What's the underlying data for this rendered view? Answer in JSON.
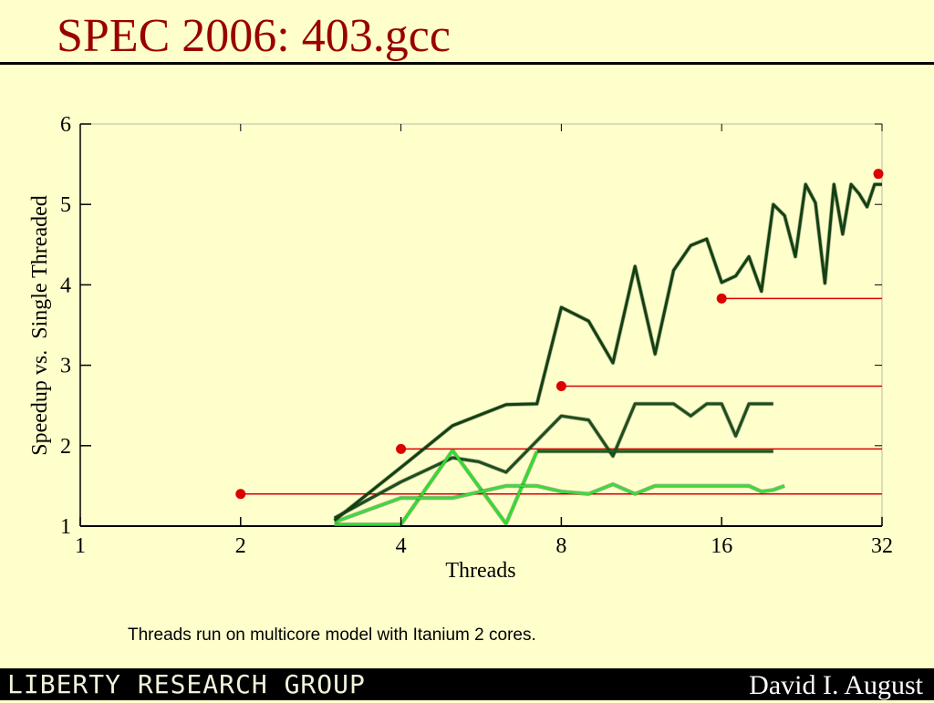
{
  "slide": {
    "title": "SPEC 2006: 403.gcc",
    "caption": "Threads run on multicore model with Itanium 2 cores.",
    "footer_logo": "LIBERTY RESEARCH GROUP",
    "footer_author": "David I. August"
  },
  "chart_data": {
    "type": "line",
    "title": "",
    "xlabel": "Threads",
    "ylabel": "Speedup vs.  Single Threaded",
    "x_scale": "log2",
    "xlim": [
      1,
      32
    ],
    "ylim": [
      1,
      6
    ],
    "x_ticks": [
      1,
      2,
      4,
      8,
      16,
      32
    ],
    "y_ticks": [
      1,
      2,
      3,
      4,
      5,
      6
    ],
    "grid": false,
    "series": [
      {
        "color": "#1e4d1e",
        "points": [
          [
            3,
            1.1
          ],
          [
            4,
            1.55
          ],
          [
            5,
            1.85
          ],
          [
            5.6,
            1.8
          ],
          [
            6.3,
            1.67
          ],
          [
            8,
            2.37
          ],
          [
            9,
            2.32
          ],
          [
            10,
            1.87
          ],
          [
            11,
            2.52
          ],
          [
            12,
            2.52
          ],
          [
            13,
            2.52
          ],
          [
            14,
            2.37
          ],
          [
            15,
            2.52
          ],
          [
            16,
            2.52
          ],
          [
            17,
            2.12
          ],
          [
            18,
            2.52
          ],
          [
            20,
            2.52
          ]
        ]
      },
      {
        "color": "#1c5c1c",
        "points": [
          [
            7.2,
            1.93
          ],
          [
            8,
            1.93
          ],
          [
            10,
            1.93
          ],
          [
            12,
            1.93
          ],
          [
            15,
            1.93
          ],
          [
            18,
            1.93
          ],
          [
            20,
            1.93
          ]
        ]
      },
      {
        "color": "#30dd30",
        "points": [
          [
            3,
            1.02
          ],
          [
            4,
            1.02
          ],
          [
            5,
            1.94
          ],
          [
            6.3,
            1.03
          ],
          [
            7.2,
            1.93
          ]
        ]
      },
      {
        "color": "#40d840",
        "points": [
          [
            3,
            1.05
          ],
          [
            4,
            1.35
          ],
          [
            5,
            1.35
          ],
          [
            6.3,
            1.5
          ],
          [
            7.2,
            1.5
          ],
          [
            8,
            1.43
          ],
          [
            9,
            1.4
          ],
          [
            10,
            1.52
          ],
          [
            11,
            1.4
          ],
          [
            12,
            1.5
          ],
          [
            14,
            1.5
          ],
          [
            16,
            1.5
          ],
          [
            18,
            1.5
          ],
          [
            19,
            1.43
          ],
          [
            20,
            1.45
          ],
          [
            21,
            1.5
          ]
        ]
      },
      {
        "color": "#124012",
        "points": [
          [
            3,
            1.07
          ],
          [
            4,
            1.73
          ],
          [
            5,
            2.25
          ],
          [
            6.3,
            2.51
          ],
          [
            7.2,
            2.52
          ],
          [
            8,
            3.72
          ],
          [
            9,
            3.55
          ],
          [
            10,
            3.03
          ],
          [
            11,
            4.23
          ],
          [
            12,
            3.14
          ],
          [
            13,
            4.18
          ],
          [
            14,
            4.49
          ],
          [
            15,
            4.57
          ],
          [
            16,
            4.03
          ],
          [
            17,
            4.11
          ],
          [
            18,
            4.35
          ],
          [
            19,
            3.92
          ],
          [
            20,
            5.0
          ],
          [
            21,
            4.86
          ],
          [
            22,
            4.35
          ],
          [
            23,
            5.25
          ],
          [
            24,
            5.02
          ],
          [
            25,
            4.02
          ],
          [
            26,
            5.25
          ],
          [
            27,
            4.63
          ],
          [
            28,
            5.25
          ],
          [
            29,
            5.13
          ],
          [
            30,
            4.97
          ],
          [
            31,
            5.25
          ],
          [
            32,
            5.25
          ]
        ]
      }
    ],
    "reference_lines": [
      {
        "x": 2,
        "y": 1.4,
        "color": "#dd0000"
      },
      {
        "x": 4,
        "y": 1.96,
        "color": "#dd0000"
      },
      {
        "x": 8,
        "y": 2.74,
        "color": "#dd0000"
      },
      {
        "x": 16,
        "y": 3.83,
        "color": "#dd0000"
      },
      {
        "x": 31.5,
        "y": 5.38,
        "color": "#dd0000"
      }
    ]
  }
}
